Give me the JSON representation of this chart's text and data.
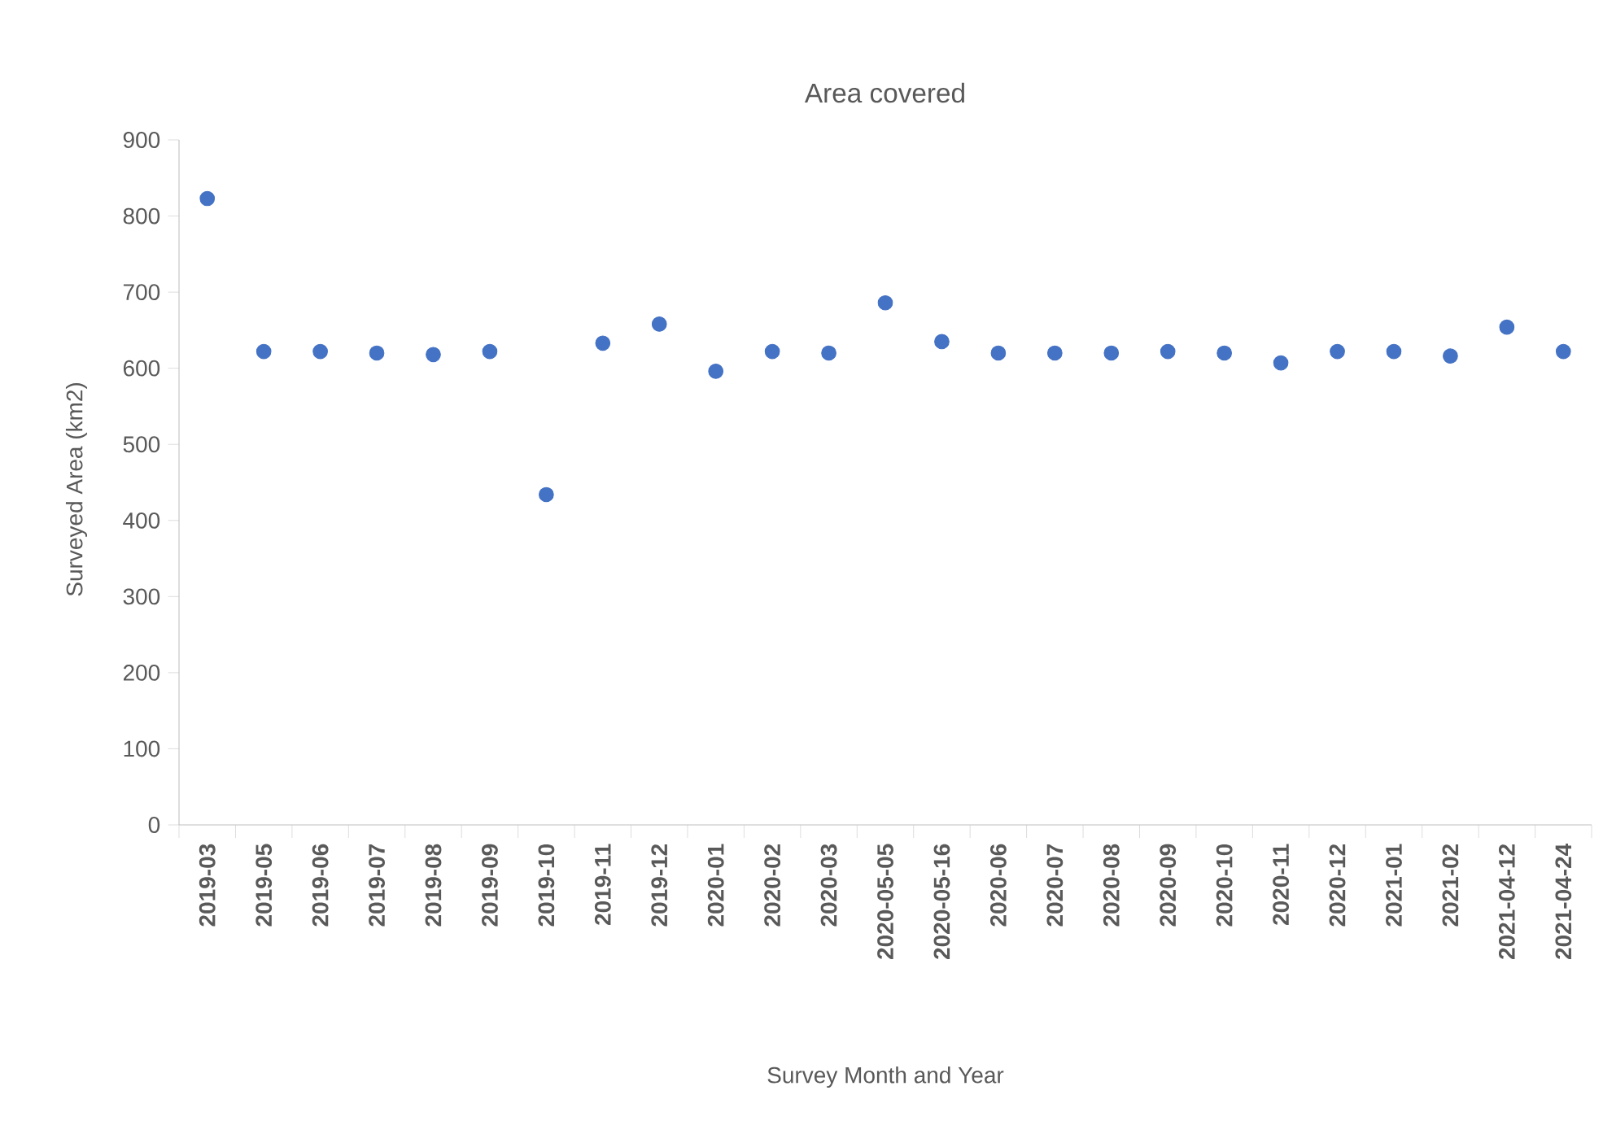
{
  "chart_data": {
    "type": "scatter",
    "title": "Area covered",
    "xlabel": "Survey Month and Year",
    "ylabel": "Surveyed Area (km2)",
    "categories": [
      "2019-03",
      "2019-05",
      "2019-06",
      "2019-07",
      "2019-08",
      "2019-09",
      "2019-10",
      "2019-11",
      "2019-12",
      "2020-01",
      "2020-02",
      "2020-03",
      "2020-05-05",
      "2020-05-16",
      "2020-06",
      "2020-07",
      "2020-08",
      "2020-09",
      "2020-10",
      "2020-11",
      "2020-12",
      "2021-01",
      "2021-02",
      "2021-04-12",
      "2021-04-24"
    ],
    "values": [
      823,
      622,
      622,
      620,
      618,
      622,
      434,
      633,
      658,
      596,
      622,
      620,
      686,
      635,
      620,
      620,
      620,
      622,
      620,
      607,
      622,
      622,
      616,
      654,
      622
    ],
    "color": "#4472c4",
    "marker": "circle",
    "ylim": [
      0,
      900
    ],
    "yticks": [
      0,
      100,
      200,
      300,
      400,
      500,
      600,
      700,
      800,
      900
    ]
  }
}
